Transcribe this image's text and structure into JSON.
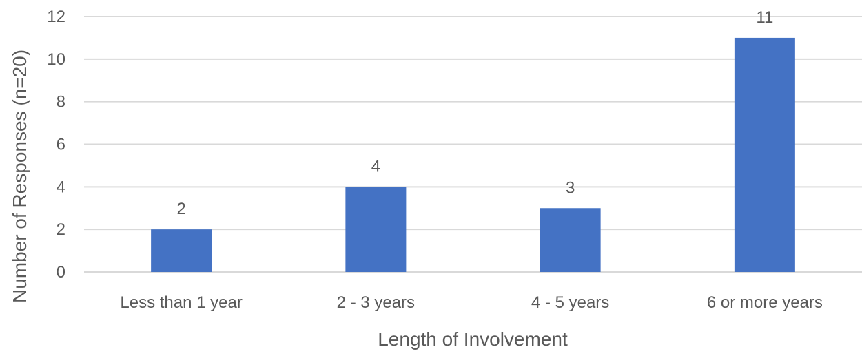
{
  "chart_data": {
    "type": "bar",
    "categories": [
      "Less than 1 year",
      "2 - 3 years",
      "4 - 5 years",
      "6 or more years"
    ],
    "values": [
      2,
      4,
      3,
      11
    ],
    "data_labels": [
      "2",
      "4",
      "3",
      "11"
    ],
    "title": "",
    "xlabel": "Length of Involvement",
    "ylabel": "Number of Responses (n=20)",
    "ylim": [
      0,
      12
    ],
    "yticks": [
      0,
      2,
      4,
      6,
      8,
      10,
      12
    ],
    "grid": true,
    "legend": "none",
    "colors": {
      "bar": "#4472C4",
      "grid": "#D9D9D9",
      "text": "#595959"
    }
  }
}
